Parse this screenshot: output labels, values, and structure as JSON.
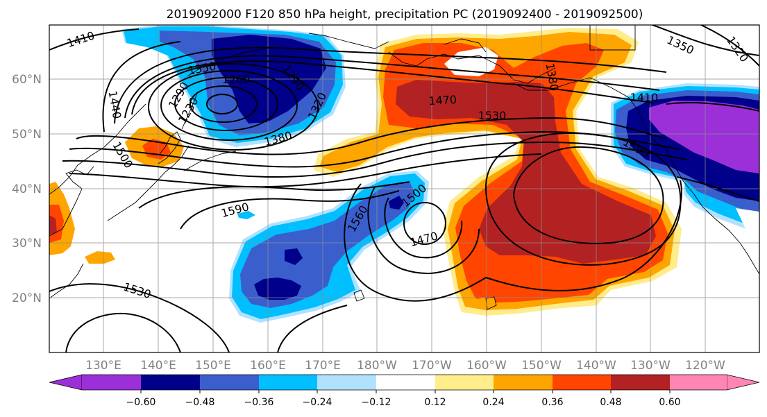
{
  "title": "2019092000 F120 850 hPa height, precipitation PC (2019092400 - 2019092500)",
  "lat_labels": [
    "60°N",
    "50°N",
    "40°N",
    "30°N",
    "20°N"
  ],
  "lon_labels": [
    "130°E",
    "140°E",
    "150°E",
    "160°E",
    "170°E",
    "180°W",
    "170°W",
    "160°W",
    "150°W",
    "140°W",
    "130°W",
    "120°W"
  ],
  "colorbar": {
    "colors": [
      "#9b30d9",
      "#00008b",
      "#3a5fcd",
      "#00bfff",
      "#b0e2ff",
      "#ffffff",
      "#ffec8b",
      "#ffa500",
      "#ff4500",
      "#b22222",
      "#ff86b4"
    ],
    "ticks": [
      "−0.60",
      "−0.48",
      "−0.36",
      "−0.24",
      "−0.12",
      "0.12",
      "0.24",
      "0.36",
      "0.48",
      "0.60"
    ]
  },
  "contour_labels": [
    {
      "text": "1410"
    },
    {
      "text": "1350"
    },
    {
      "text": "1440"
    },
    {
      "text": "1290"
    },
    {
      "text": "1230"
    },
    {
      "text": "1260"
    },
    {
      "text": "1290"
    },
    {
      "text": "1320"
    },
    {
      "text": "1380"
    },
    {
      "text": "1500"
    },
    {
      "text": "1590"
    },
    {
      "text": "1530"
    },
    {
      "text": "1470"
    },
    {
      "text": "1530"
    },
    {
      "text": "1380"
    },
    {
      "text": "1350"
    },
    {
      "text": "1320"
    },
    {
      "text": "1410"
    },
    {
      "text": "1590"
    },
    {
      "text": "1560"
    },
    {
      "text": "1500"
    },
    {
      "text": "1470"
    }
  ]
}
